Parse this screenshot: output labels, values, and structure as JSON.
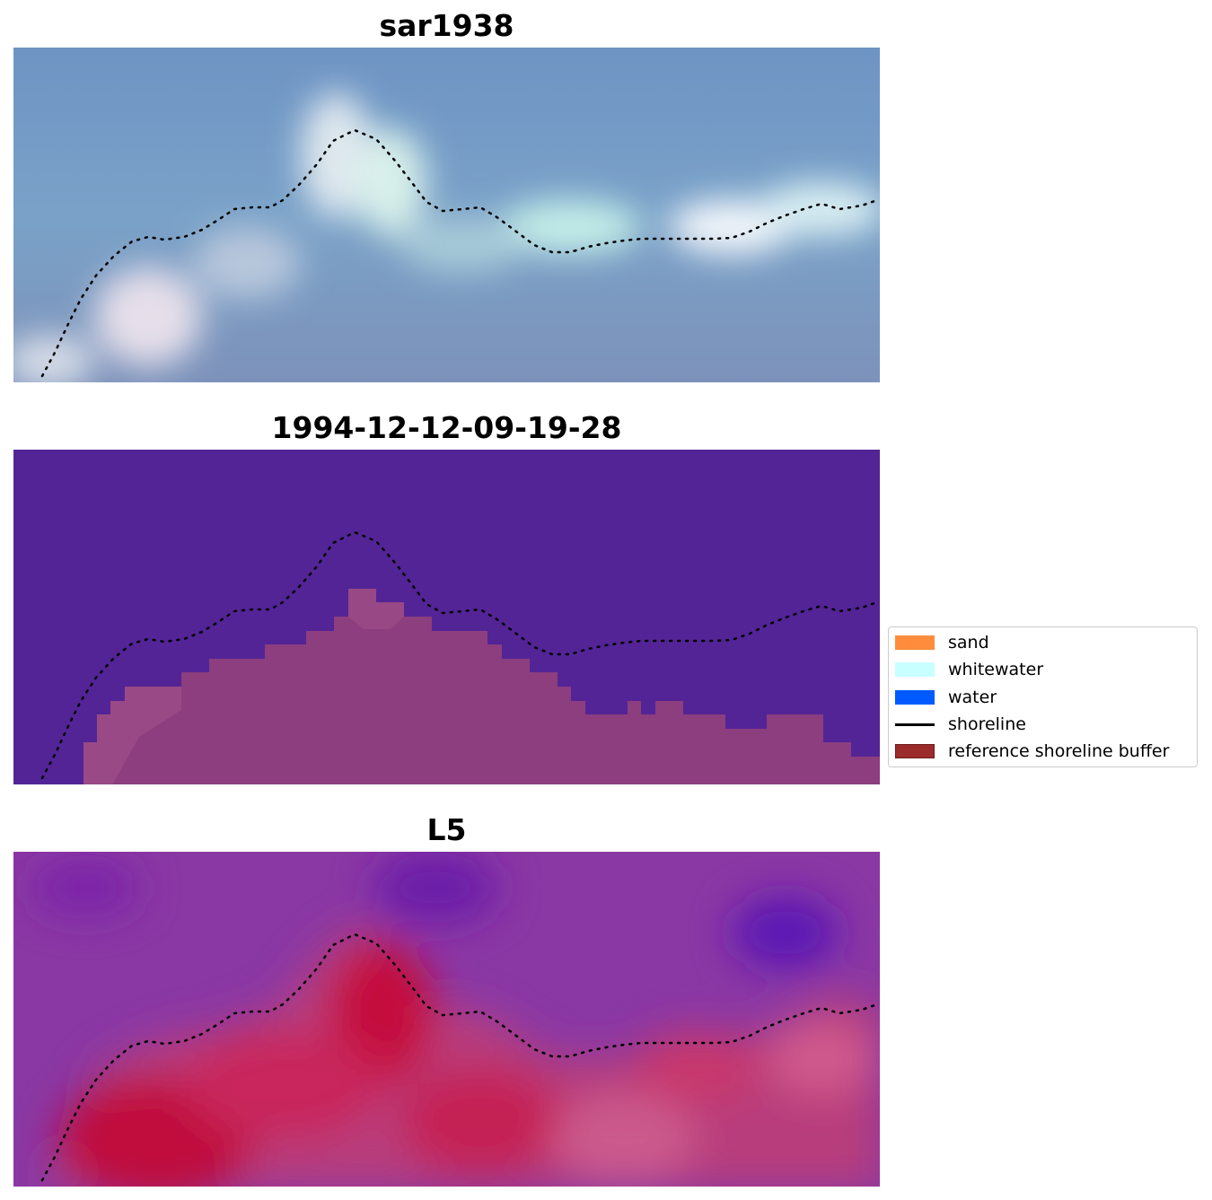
{
  "panels": [
    {
      "title": "sar1938",
      "style": "sar"
    },
    {
      "title": "1994-12-12-09-19-28",
      "style": "classified"
    },
    {
      "title": "L5",
      "style": "l5"
    }
  ],
  "legend": {
    "items": [
      {
        "label": "sand",
        "color": "#ff8c3c",
        "type": "patch"
      },
      {
        "label": "whitewater",
        "color": "#c8ffff",
        "type": "patch"
      },
      {
        "label": "water",
        "color": "#005aff",
        "type": "patch"
      },
      {
        "label": "shoreline",
        "color": "#000000",
        "type": "line"
      },
      {
        "label": "reference shoreline buffer",
        "color": "#9c2b2b",
        "type": "patch"
      }
    ]
  },
  "colors": {
    "classified_background": "#532496",
    "classified_buffer": "#8c3e7e",
    "shoreline": "#000000"
  }
}
